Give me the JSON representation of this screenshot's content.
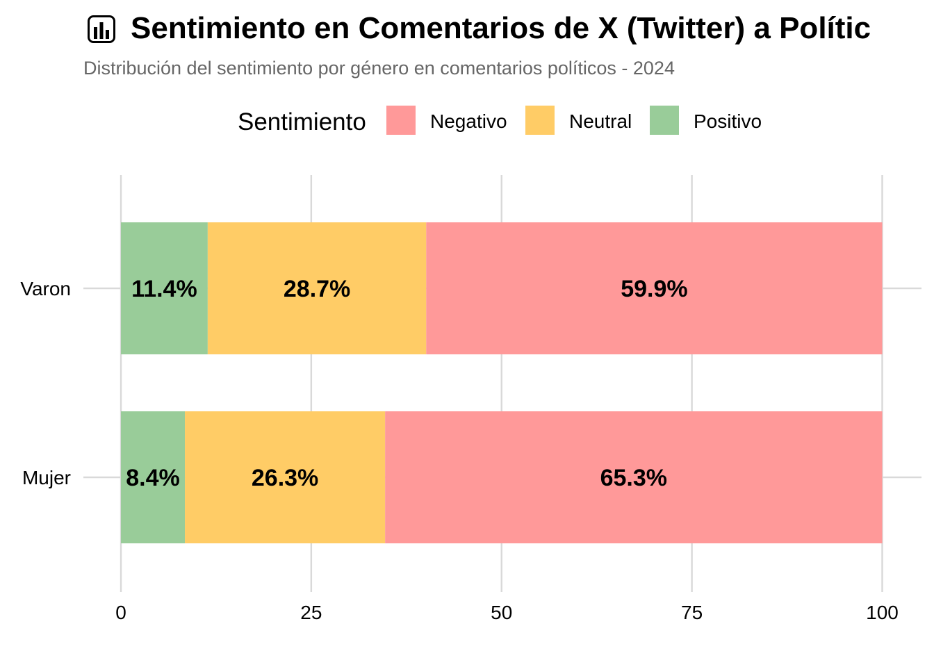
{
  "chart_data": {
    "type": "bar",
    "orientation": "horizontal",
    "stacked": true,
    "title": "Sentimiento en Comentarios de X (Twitter) a Polític",
    "subtitle": "Distribución del sentimiento por género en comentarios políticos - 2024",
    "title_icon": "bar-chart-icon",
    "legend": {
      "title": "Sentimiento",
      "position": "top",
      "entries": [
        "Negativo",
        "Neutral",
        "Positivo"
      ]
    },
    "categories": [
      "Varon",
      "Mujer"
    ],
    "series": [
      {
        "name": "Positivo",
        "color": "#99CC99",
        "values": [
          11.4,
          8.4
        ],
        "labels": [
          "11.4%",
          "8.4%"
        ]
      },
      {
        "name": "Neutral",
        "color": "#FFCC66",
        "values": [
          28.7,
          26.3
        ],
        "labels": [
          "28.7%",
          "26.3%"
        ]
      },
      {
        "name": "Negativo",
        "color": "#FF9999",
        "values": [
          59.9,
          65.3
        ],
        "labels": [
          "59.9%",
          "65.3%"
        ]
      }
    ],
    "xlim": [
      0,
      100
    ],
    "xticks": [
      0,
      25,
      50,
      75,
      100
    ],
    "xtick_labels": [
      "0",
      "25",
      "50",
      "75",
      "100"
    ],
    "grid": true
  }
}
